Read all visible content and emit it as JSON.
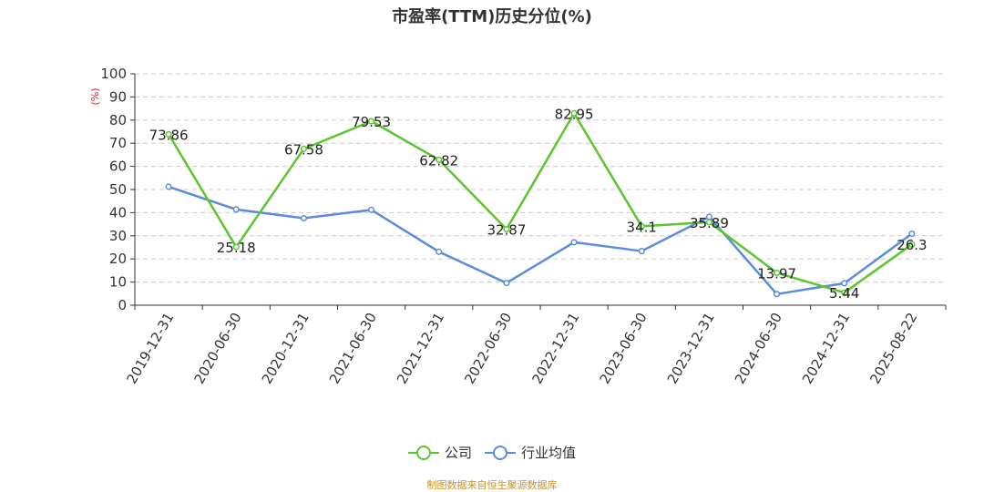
{
  "title": "市盈率(TTM)历史分位(%)",
  "source_note": "制图数据来自恒生聚源数据库",
  "chart_data": {
    "type": "line",
    "title": "市盈率(TTM)历史分位(%)",
    "ylabel": "(%)",
    "ylim": [
      0,
      100
    ],
    "yticks": [
      0,
      10,
      20,
      30,
      40,
      50,
      60,
      70,
      80,
      90,
      100
    ],
    "grid": true,
    "legend_position": "bottom-center",
    "categories": [
      "2019-12-31",
      "2020-06-30",
      "2020-12-31",
      "2021-06-30",
      "2021-12-31",
      "2022-06-30",
      "2022-12-31",
      "2023-06-30",
      "2023-12-31",
      "2024-06-30",
      "2024-12-31",
      "2025-08-22"
    ],
    "series": [
      {
        "name": "公司",
        "color": "#5cc52d",
        "labels": true,
        "values": [
          73.86,
          25.18,
          67.58,
          79.53,
          62.82,
          32.87,
          82.95,
          34.1,
          35.89,
          13.97,
          5.44,
          26.3
        ]
      },
      {
        "name": "行业均值",
        "color": "#5b8be0",
        "labels": false,
        "values": [
          51.2,
          41.4,
          37.6,
          41.2,
          23.1,
          9.6,
          27.2,
          23.4,
          38.2,
          4.8,
          9.5,
          30.9
        ]
      }
    ]
  }
}
